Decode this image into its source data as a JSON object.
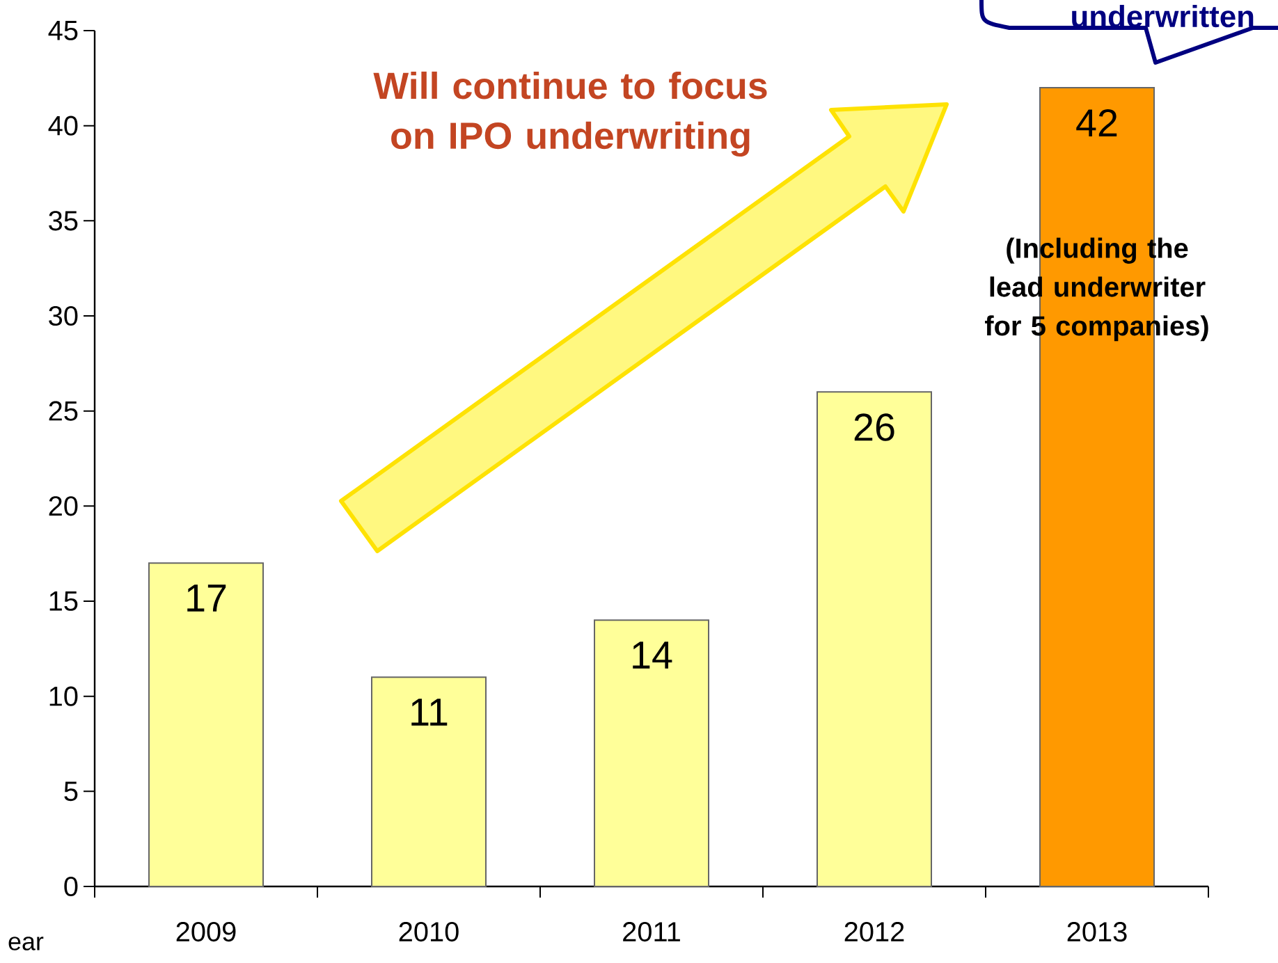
{
  "chart_data": {
    "type": "bar",
    "xlabel": "ear",
    "categories": [
      "2009",
      "2010",
      "2011",
      "2012",
      "2013"
    ],
    "values": [
      17,
      11,
      14,
      26,
      42
    ],
    "colors": [
      "#ffff99",
      "#ffff99",
      "#ffff99",
      "#ffff99",
      "#ff9900"
    ],
    "ylim": [
      0,
      45
    ],
    "yticks": [
      0,
      5,
      10,
      15,
      20,
      25,
      30,
      35,
      40,
      45
    ],
    "data_labels": true,
    "grid": false,
    "annotations": [
      "Will continue to focus on IPO underwriting",
      "(Including the lead underwriter for 5 companies)",
      "underwritten"
    ]
  }
}
